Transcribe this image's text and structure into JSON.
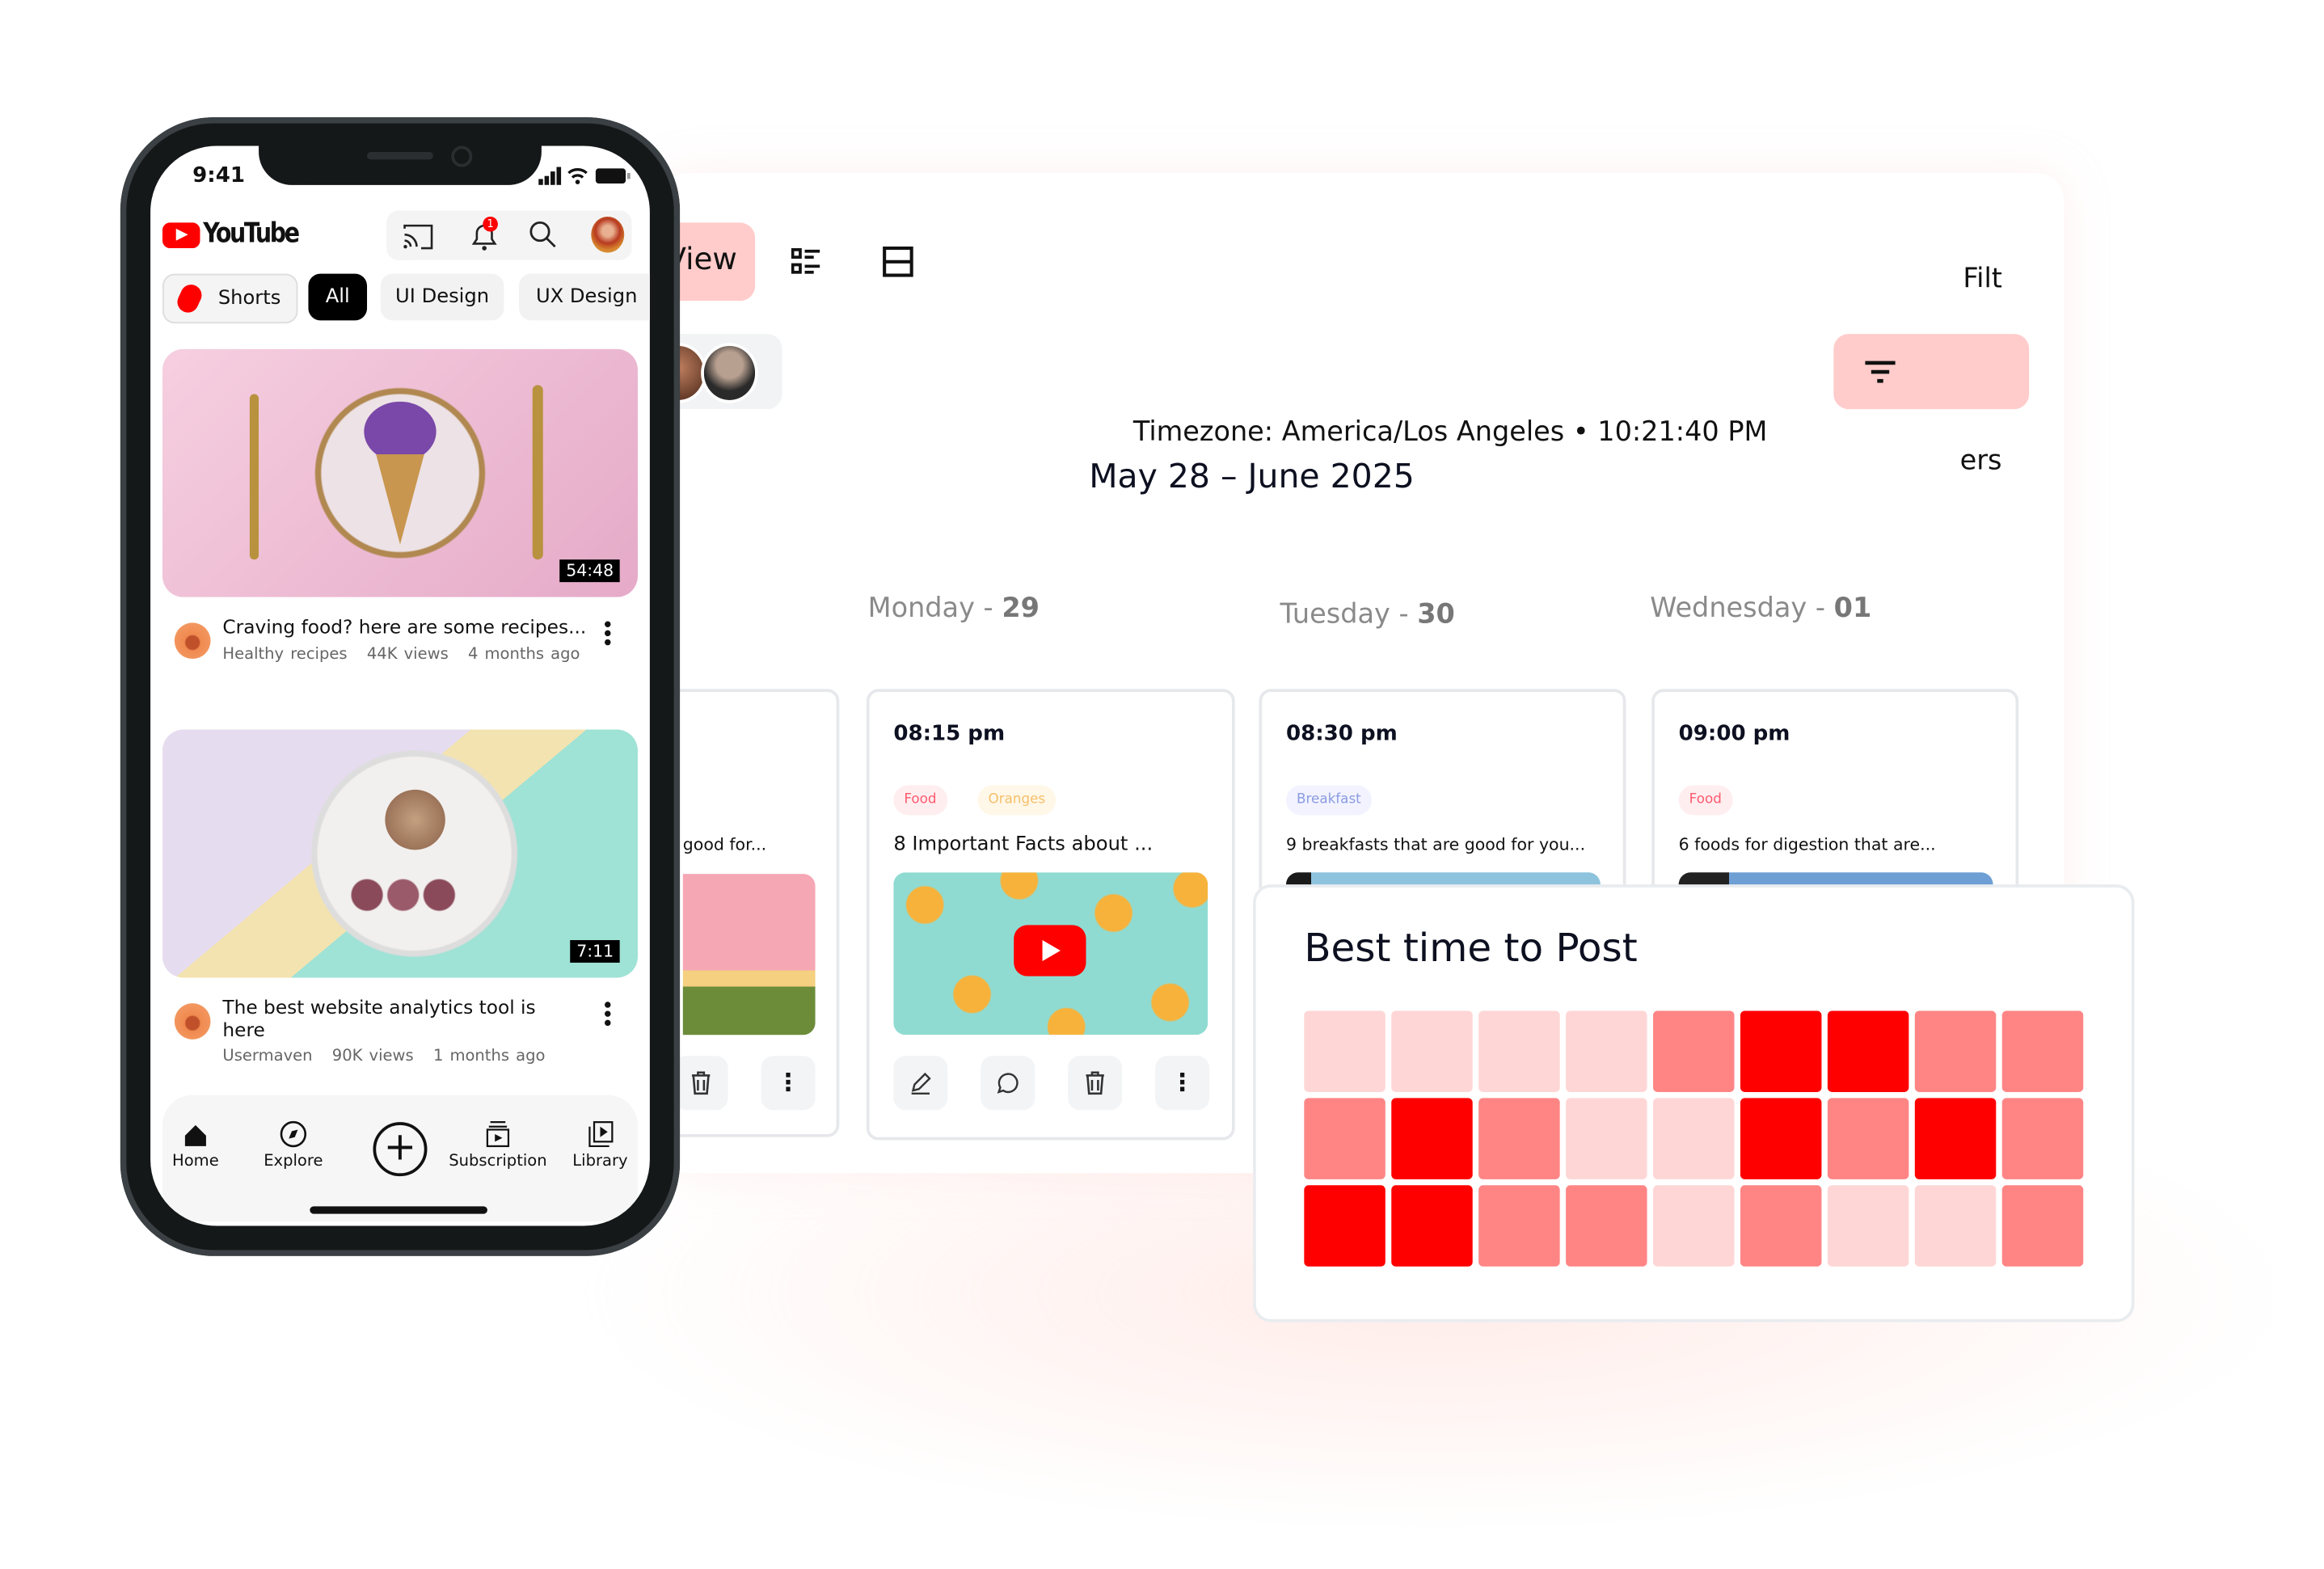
{
  "dashboard": {
    "view_button": "View",
    "timezone_label": "Timezone: America/Los Angeles • 10:21:40 PM",
    "filter_button_fragments": [
      "Filt",
      "ers"
    ],
    "date_range": "May 28 – June 2025",
    "days": [
      {
        "name": "Monday",
        "number": "29"
      },
      {
        "name": "Tuesday",
        "number": "30"
      },
      {
        "name": "Wednesday",
        "number": "01"
      }
    ],
    "partial_card": {
      "title": "good for..."
    },
    "cards": [
      {
        "time": "08:15 pm",
        "tags": [
          {
            "label": "Food",
            "color": "#ff5a6e",
            "bg": "#ffeef0"
          },
          {
            "label": "Oranges",
            "color": "#f5c06a",
            "bg": "#fff7e8"
          }
        ],
        "title": "8 Important Facts about ..."
      },
      {
        "time": "08:30 pm",
        "tags": [
          {
            "label": "Breakfast",
            "color": "#8b9be0",
            "bg": "#f2f3ff"
          }
        ],
        "title": "9 breakfasts that are good for you..."
      },
      {
        "time": "09:00 pm",
        "tags": [
          {
            "label": "Food",
            "color": "#ff5a6e",
            "bg": "#ffeef0"
          }
        ],
        "title": "6 foods for digestion that are..."
      }
    ],
    "accent_color": "#ffcccb"
  },
  "best_time": {
    "title": "Best time to Post",
    "chart_data": {
      "type": "heatmap",
      "title": "Best time to Post",
      "levels": [
        [
          0,
          0,
          0,
          0,
          1,
          2,
          2,
          1,
          1
        ],
        [
          1,
          2,
          1,
          0,
          0,
          2,
          1,
          2,
          1
        ],
        [
          2,
          2,
          1,
          1,
          0,
          1,
          0,
          0,
          1
        ]
      ],
      "colors": [
        "#ffd6d6",
        "#ff8585",
        "#ff0000"
      ]
    }
  },
  "phone": {
    "status_time": "9:41",
    "app_name": "YouTube",
    "notification_count": "1",
    "chips": [
      "Shorts",
      "All",
      "UI Design",
      "UX Design"
    ],
    "videos": [
      {
        "duration": "54:48",
        "title": "Craving food? here are some recipes...",
        "channel": "Healthy recipes",
        "views": "44K views",
        "age": "4 months ago"
      },
      {
        "duration": "7:11",
        "title": "The best website analytics tool is here",
        "channel": "Usermaven",
        "views": "90K views",
        "age": "1 months ago"
      }
    ],
    "nav": [
      "Home",
      "Explore",
      "Subscription",
      "Library"
    ]
  }
}
